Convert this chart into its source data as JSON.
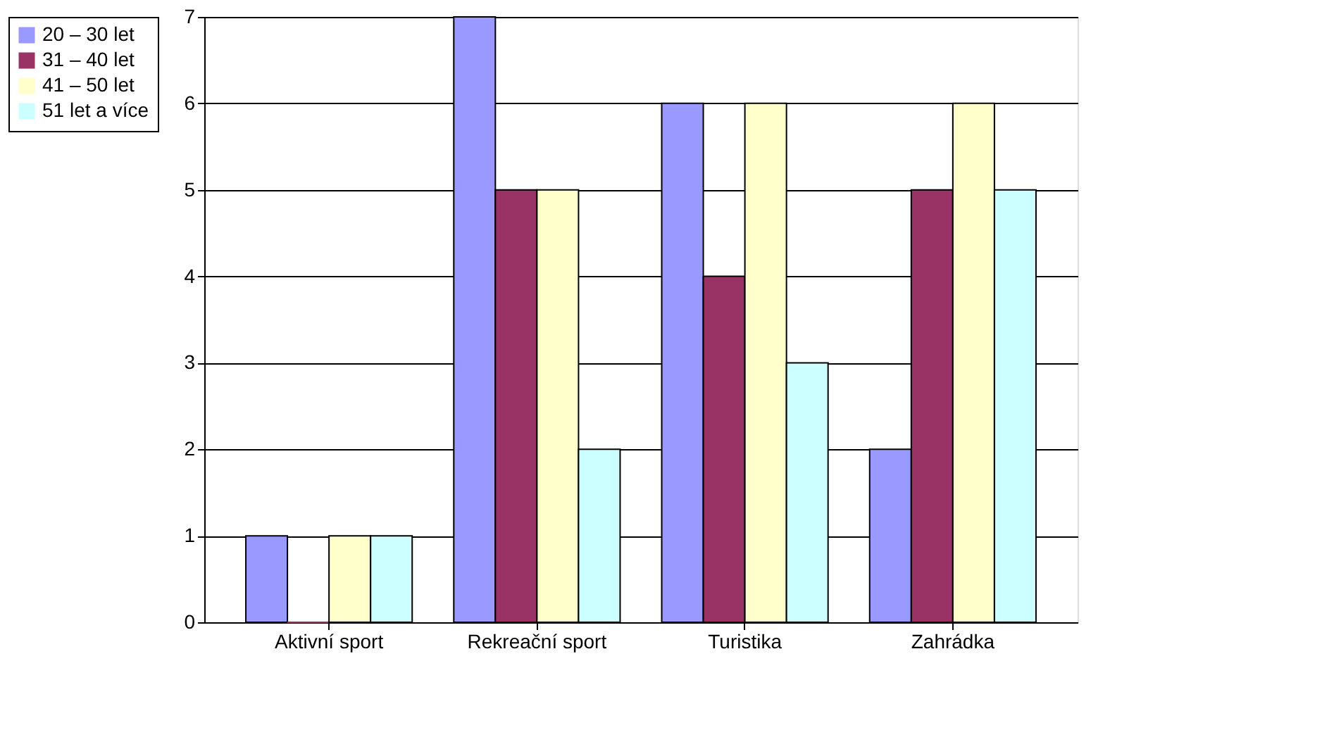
{
  "chart_data": {
    "type": "bar",
    "categories": [
      "Aktivní sport",
      "Rekreační sport",
      "Turistika",
      "Zahrádka"
    ],
    "series": [
      {
        "name": "20 – 30 let",
        "color": "#9999ff",
        "values": [
          1,
          7,
          6,
          2
        ]
      },
      {
        "name": "31 – 40 let",
        "color": "#993366",
        "values": [
          0,
          5,
          4,
          5
        ]
      },
      {
        "name": "41 – 50 let",
        "color": "#ffffcc",
        "values": [
          1,
          5,
          6,
          6
        ]
      },
      {
        "name": "51 let a více",
        "color": "#ccffff",
        "values": [
          1,
          2,
          3,
          5
        ]
      }
    ],
    "ylim": [
      0,
      7
    ],
    "yticks": [
      0,
      1,
      2,
      3,
      4,
      5,
      6,
      7
    ],
    "grid": "y",
    "legend": "left"
  }
}
